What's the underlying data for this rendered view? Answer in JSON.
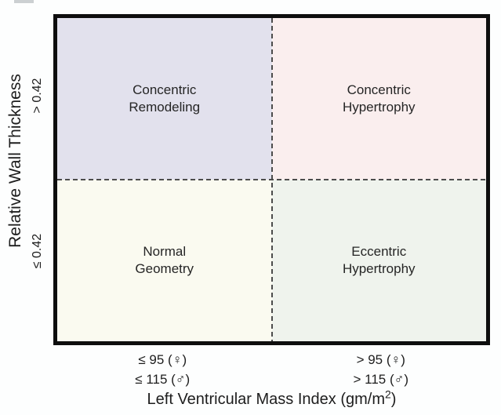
{
  "figure": {
    "y_axis": {
      "title": "Relative Wall Thickness",
      "upper_label": "> 0.42",
      "lower_label": "≤ 0.42"
    },
    "x_axis": {
      "title_prefix": "Left Ventricular Mass Index (gm/m",
      "title_sup": "2",
      "title_suffix": ")",
      "left_cutoffs": {
        "female": "≤ 95 (♀)",
        "male": "≤ 115 (♂)"
      },
      "right_cutoffs": {
        "female": "> 95 (♀)",
        "male": "> 115 (♂)"
      }
    },
    "quadrants": [
      {
        "position": "top-left",
        "line1": "Concentric",
        "line2": "Remodeling",
        "bg": "#e2e1ed"
      },
      {
        "position": "top-right",
        "line1": "Concentric",
        "line2": "Hypertrophy",
        "bg": "#faeeee"
      },
      {
        "position": "bottom-left",
        "line1": "Normal",
        "line2": "Geometry",
        "bg": "#fafaf0"
      },
      {
        "position": "bottom-right",
        "line1": "Eccentric",
        "line2": "Hypertrophy",
        "bg": "#eff3ed"
      }
    ],
    "colors": {
      "plot_border": "#0e0e0e",
      "dashed_line": "#4c4c4c",
      "text": "#1d1d1d",
      "page_background": "#fdfefe"
    }
  }
}
